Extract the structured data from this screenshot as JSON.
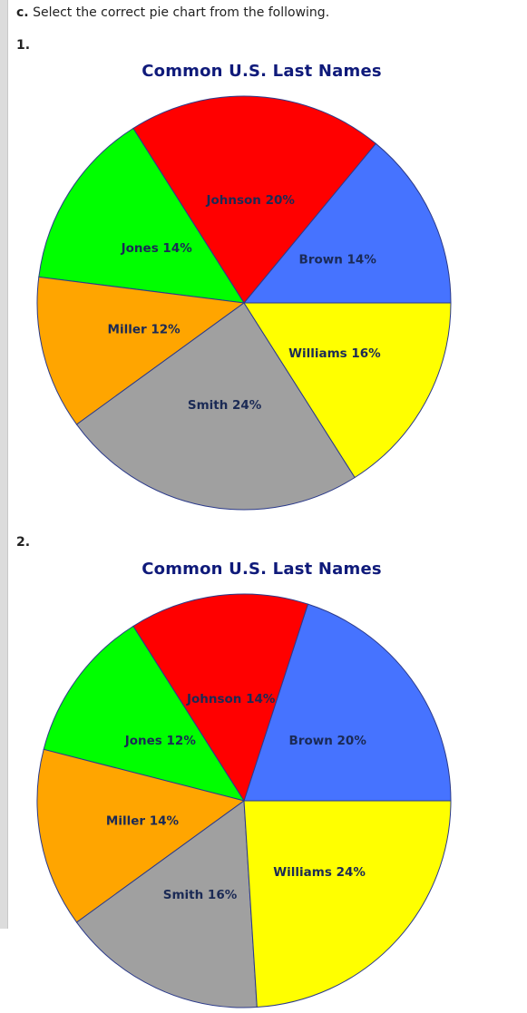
{
  "question": {
    "prefix": "c.",
    "text": "Select the correct pie chart from the following."
  },
  "chart_data": [
    {
      "type": "pie",
      "option_label": "1.",
      "title": "Common U.S. Last Names",
      "slices": [
        {
          "name": "Brown",
          "label": "Brown 14%",
          "value": 14,
          "color": "#4673ff"
        },
        {
          "name": "Johnson",
          "label": "Johnson 20%",
          "value": 20,
          "color": "#ff0000"
        },
        {
          "name": "Jones",
          "label": "Jones 14%",
          "value": 14,
          "color": "#00ff00"
        },
        {
          "name": "Miller",
          "label": "Miller 12%",
          "value": 12,
          "color": "#ffa500"
        },
        {
          "name": "Smith",
          "label": "Smith 24%",
          "value": 24,
          "color": "#a0a0a0"
        },
        {
          "name": "Williams",
          "label": "Williams 16%",
          "value": 16,
          "color": "#ffff00"
        }
      ]
    },
    {
      "type": "pie",
      "option_label": "2.",
      "title": "Common U.S. Last Names",
      "slices": [
        {
          "name": "Brown",
          "label": "Brown 20%",
          "value": 20,
          "color": "#4673ff"
        },
        {
          "name": "Johnson",
          "label": "Johnson 14%",
          "value": 14,
          "color": "#ff0000"
        },
        {
          "name": "Jones",
          "label": "Jones 12%",
          "value": 12,
          "color": "#00ff00"
        },
        {
          "name": "Miller",
          "label": "Miller 14%",
          "value": 14,
          "color": "#ffa500"
        },
        {
          "name": "Smith",
          "label": "Smith 16%",
          "value": 16,
          "color": "#a0a0a0"
        },
        {
          "name": "Williams",
          "label": "Williams 24%",
          "value": 24,
          "color": "#ffff00"
        }
      ]
    }
  ]
}
